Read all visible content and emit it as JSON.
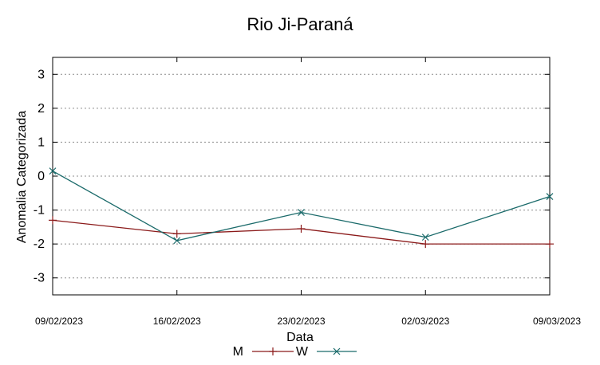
{
  "chart_data": {
    "type": "line",
    "title": "Rio Ji-Paraná",
    "xlabel": "Data",
    "ylabel": "Anomalia Categorizada",
    "categories": [
      "09/02/2023",
      "16/02/2023",
      "23/02/2023",
      "02/03/2023",
      "09/03/2023"
    ],
    "yticks": [
      "3",
      "2",
      "1",
      "0",
      "-1",
      "-2",
      "-3"
    ],
    "ylim": [
      -3.5,
      3.5
    ],
    "grid": "horizontal dotted",
    "legend_position": "bottom",
    "series": [
      {
        "name": "M",
        "color": "#8b1a1a",
        "marker": "plus",
        "values": [
          -1.3,
          -1.7,
          -1.55,
          -2.0,
          -2.0
        ]
      },
      {
        "name": "W",
        "color": "#1a6a6a",
        "marker": "cross",
        "values": [
          0.15,
          -1.9,
          -1.07,
          -1.8,
          -0.6
        ]
      }
    ]
  }
}
